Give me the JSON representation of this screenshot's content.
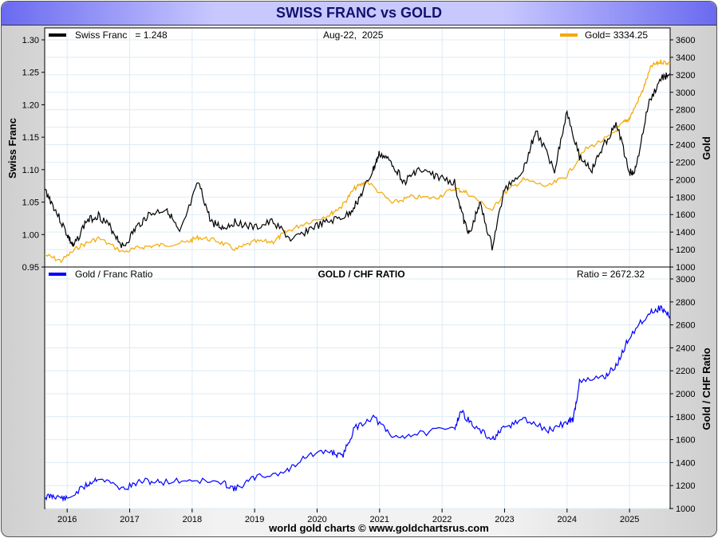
{
  "title": "SWISS FRANC vs GOLD",
  "footer": "world gold charts © www.goldchartsrus.com",
  "colors": {
    "franc": "#000000",
    "gold": "#f5a800",
    "ratio": "#0000ff",
    "grid": "#dcecf5"
  },
  "chart_data": [
    {
      "type": "line",
      "title": "",
      "date_label": "Aug-22,  2025",
      "legend": [
        {
          "label": "Swiss Franc   = 1.248",
          "position": "top-left"
        },
        {
          "label": "Gold= 3334.25",
          "position": "top-right"
        }
      ],
      "ylabel_left": "Swiss Franc",
      "ylabel_right": "Gold",
      "ylim_left": [
        0.95,
        1.3
      ],
      "yticks_left": [
        "1.30",
        "1.25",
        "1.20",
        "1.15",
        "1.10",
        "1.05",
        "1.00",
        "0.95"
      ],
      "ylim_right": [
        1000,
        3600
      ],
      "yticks_right": [
        "3600",
        "3400",
        "3200",
        "3000",
        "2800",
        "2600",
        "2400",
        "2200",
        "2000",
        "1800",
        "1600",
        "1400",
        "1200",
        "1000"
      ],
      "xlim": [
        2015.64,
        2025.65
      ],
      "series": [
        {
          "name": "Swiss Franc",
          "axis": "left",
          "x": [
            2015.64,
            2015.8,
            2016.0,
            2016.1,
            2016.3,
            2016.5,
            2016.7,
            2016.9,
            2017.1,
            2017.3,
            2017.6,
            2017.8,
            2018.1,
            2018.3,
            2018.5,
            2018.7,
            2019.0,
            2019.3,
            2019.6,
            2019.9,
            2020.2,
            2020.5,
            2020.7,
            2020.9,
            2021.0,
            2021.2,
            2021.4,
            2021.6,
            2021.9,
            2022.2,
            2022.35,
            2022.45,
            2022.6,
            2022.8,
            2023.0,
            2023.3,
            2023.5,
            2023.8,
            2024.0,
            2024.2,
            2024.4,
            2024.6,
            2024.8,
            2025.0,
            2025.1,
            2025.3,
            2025.5,
            2025.65
          ],
          "y": [
            1.07,
            1.04,
            1.0,
            0.98,
            1.02,
            1.03,
            1.01,
            0.98,
            1.01,
            1.03,
            1.04,
            1.0,
            1.08,
            1.02,
            1.01,
            1.02,
            1.01,
            1.02,
            0.99,
            1.01,
            1.02,
            1.03,
            1.06,
            1.1,
            1.125,
            1.11,
            1.08,
            1.1,
            1.09,
            1.08,
            1.02,
            1.0,
            1.05,
            0.98,
            1.07,
            1.1,
            1.16,
            1.1,
            1.19,
            1.12,
            1.1,
            1.14,
            1.17,
            1.095,
            1.1,
            1.2,
            1.24,
            1.248
          ]
        },
        {
          "name": "Gold",
          "axis": "right",
          "x": [
            2015.64,
            2015.9,
            2016.2,
            2016.5,
            2016.9,
            2017.2,
            2017.5,
            2017.9,
            2018.1,
            2018.4,
            2018.7,
            2019.0,
            2019.3,
            2019.5,
            2019.8,
            2020.2,
            2020.4,
            2020.6,
            2020.8,
            2021.2,
            2021.5,
            2021.9,
            2022.2,
            2022.4,
            2022.8,
            2023.0,
            2023.3,
            2023.7,
            2024.0,
            2024.3,
            2024.7,
            2024.9,
            2025.0,
            2025.2,
            2025.35,
            2025.5,
            2025.65
          ],
          "y": [
            1140,
            1070,
            1240,
            1330,
            1170,
            1230,
            1250,
            1280,
            1340,
            1300,
            1200,
            1290,
            1290,
            1400,
            1500,
            1600,
            1700,
            1900,
            1980,
            1730,
            1800,
            1790,
            1900,
            1850,
            1650,
            1850,
            2000,
            1920,
            2050,
            2350,
            2500,
            2650,
            2700,
            3000,
            3300,
            3350,
            3334.25
          ]
        }
      ]
    },
    {
      "type": "line",
      "title": "GOLD / CHF RATIO",
      "legend": [
        {
          "label": "Gold / Franc Ratio",
          "position": "top-left"
        },
        {
          "label": "Ratio = 2672.32",
          "position": "top-right"
        }
      ],
      "ylabel_right": "Gold / CHF Ratio",
      "ylim": [
        1000,
        3000
      ],
      "yticks": [
        "3000",
        "2800",
        "2600",
        "2400",
        "2200",
        "2000",
        "1800",
        "1600",
        "1400",
        "1200",
        "1000"
      ],
      "xticks": [
        "2016",
        "2017",
        "2018",
        "2019",
        "2020",
        "2021",
        "2022",
        "2023",
        "2024",
        "2025"
      ],
      "xlim": [
        2015.64,
        2025.65
      ],
      "series": [
        {
          "name": "Gold / Franc Ratio",
          "x": [
            2015.64,
            2015.8,
            2016.0,
            2016.3,
            2016.5,
            2016.9,
            2017.2,
            2017.5,
            2018.0,
            2018.5,
            2018.7,
            2019.0,
            2019.5,
            2019.8,
            2020.2,
            2020.4,
            2020.6,
            2020.9,
            2021.2,
            2021.6,
            2022.2,
            2022.3,
            2022.5,
            2022.8,
            2023.0,
            2023.3,
            2023.7,
            2024.0,
            2024.1,
            2024.2,
            2024.6,
            2024.8,
            2025.0,
            2025.3,
            2025.5,
            2025.65
          ],
          "y": [
            1100,
            1110,
            1080,
            1200,
            1270,
            1170,
            1240,
            1230,
            1250,
            1220,
            1170,
            1270,
            1320,
            1450,
            1500,
            1450,
            1700,
            1800,
            1620,
            1650,
            1700,
            1850,
            1720,
            1600,
            1700,
            1780,
            1680,
            1750,
            1780,
            2100,
            2150,
            2250,
            2500,
            2700,
            2750,
            2672.32
          ]
        }
      ]
    }
  ]
}
